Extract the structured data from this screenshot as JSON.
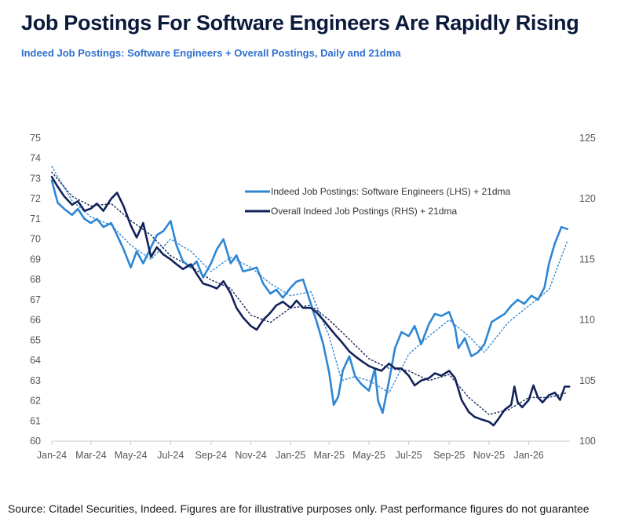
{
  "title": "Job Postings For Software Engineers Are Rapidly Rising",
  "subtitle": "Indeed Job Postings: Software Engineers + Overall Postings, Daily and 21dma",
  "source": "Source: Citadel Securities, Indeed. Figures are for illustrative purposes only. Past performance figures do not guarantee",
  "chart_data": {
    "type": "line",
    "x_axis": {
      "type": "date",
      "range": [
        "2024-01-01",
        "2026-03-05"
      ],
      "ticks": [
        "2024-01-01",
        "2024-03-01",
        "2024-05-01",
        "2024-07-01",
        "2024-09-01",
        "2024-11-01",
        "2025-01-01",
        "2025-03-01",
        "2025-05-01",
        "2025-07-01",
        "2025-09-01",
        "2025-11-01",
        "2026-01-01"
      ],
      "tick_labels": [
        "Jan-24",
        "Mar-24",
        "May-24",
        "Jul-24",
        "Sep-24",
        "Nov-24",
        "Jan-25",
        "Mar-25",
        "May-25",
        "Jul-25",
        "Sep-25",
        "Nov-25",
        "Jan-26"
      ]
    },
    "y_left": {
      "range": [
        60,
        75
      ],
      "ticks": [
        60,
        61,
        62,
        63,
        64,
        65,
        66,
        67,
        68,
        69,
        70,
        71,
        72,
        73,
        74,
        75
      ]
    },
    "y_right": {
      "range": [
        100,
        125
      ],
      "ticks": [
        100,
        105,
        110,
        115,
        120,
        125
      ]
    },
    "grid": false,
    "legend": {
      "placement": "top-right",
      "entries": [
        {
          "label": "Indeed Job Postings: Software Engineers (LHS) + 21dma",
          "color": "#2e86d4"
        },
        {
          "label": "Overall Indeed Job Postings (RHS) + 21dma",
          "color": "#13235a"
        }
      ]
    },
    "series": [
      {
        "name": "Indeed Job Postings: Software Engineers (LHS) + 21dma",
        "axis": "left",
        "color": "#2e86d4",
        "style": "solid",
        "points": [
          [
            "2024-01-01",
            72.9
          ],
          [
            "2024-01-10",
            71.8
          ],
          [
            "2024-01-20",
            71.5
          ],
          [
            "2024-02-01",
            71.2
          ],
          [
            "2024-02-10",
            71.5
          ],
          [
            "2024-02-20",
            71.0
          ],
          [
            "2024-03-01",
            70.8
          ],
          [
            "2024-03-10",
            71.0
          ],
          [
            "2024-03-20",
            70.6
          ],
          [
            "2024-04-01",
            70.8
          ],
          [
            "2024-04-10",
            70.2
          ],
          [
            "2024-04-20",
            69.5
          ],
          [
            "2024-05-01",
            68.6
          ],
          [
            "2024-05-10",
            69.4
          ],
          [
            "2024-05-20",
            68.8
          ],
          [
            "2024-06-01",
            69.6
          ],
          [
            "2024-06-10",
            70.2
          ],
          [
            "2024-06-20",
            70.4
          ],
          [
            "2024-07-01",
            70.9
          ],
          [
            "2024-07-10",
            69.7
          ],
          [
            "2024-07-20",
            68.9
          ],
          [
            "2024-08-01",
            68.6
          ],
          [
            "2024-08-10",
            68.9
          ],
          [
            "2024-08-20",
            68.1
          ],
          [
            "2024-09-01",
            68.8
          ],
          [
            "2024-09-10",
            69.5
          ],
          [
            "2024-09-20",
            70.0
          ],
          [
            "2024-10-01",
            68.8
          ],
          [
            "2024-10-10",
            69.2
          ],
          [
            "2024-10-20",
            68.4
          ],
          [
            "2024-11-01",
            68.5
          ],
          [
            "2024-11-10",
            68.6
          ],
          [
            "2024-11-20",
            67.8
          ],
          [
            "2024-12-01",
            67.3
          ],
          [
            "2024-12-10",
            67.5
          ],
          [
            "2024-12-20",
            67.1
          ],
          [
            "2025-01-01",
            67.6
          ],
          [
            "2025-01-10",
            67.9
          ],
          [
            "2025-01-20",
            68.0
          ],
          [
            "2025-02-01",
            66.8
          ],
          [
            "2025-02-10",
            65.9
          ],
          [
            "2025-02-20",
            64.8
          ],
          [
            "2025-03-01",
            63.4
          ],
          [
            "2025-03-08",
            61.8
          ],
          [
            "2025-03-15",
            62.2
          ],
          [
            "2025-03-22",
            63.5
          ],
          [
            "2025-04-01",
            64.2
          ],
          [
            "2025-04-10",
            63.2
          ],
          [
            "2025-04-20",
            62.8
          ],
          [
            "2025-05-01",
            62.5
          ],
          [
            "2025-05-10",
            63.6
          ],
          [
            "2025-05-15",
            62.0
          ],
          [
            "2025-05-22",
            61.4
          ],
          [
            "2025-06-01",
            63.0
          ],
          [
            "2025-06-10",
            64.6
          ],
          [
            "2025-06-20",
            65.4
          ],
          [
            "2025-07-01",
            65.2
          ],
          [
            "2025-07-10",
            65.7
          ],
          [
            "2025-07-20",
            64.8
          ],
          [
            "2025-08-01",
            65.8
          ],
          [
            "2025-08-10",
            66.3
          ],
          [
            "2025-08-20",
            66.2
          ],
          [
            "2025-09-01",
            66.4
          ],
          [
            "2025-09-10",
            65.6
          ],
          [
            "2025-09-15",
            64.6
          ],
          [
            "2025-09-25",
            65.1
          ],
          [
            "2025-10-05",
            64.2
          ],
          [
            "2025-10-15",
            64.4
          ],
          [
            "2025-10-25",
            64.8
          ],
          [
            "2025-11-05",
            65.9
          ],
          [
            "2025-11-15",
            66.1
          ],
          [
            "2025-11-25",
            66.3
          ],
          [
            "2025-12-05",
            66.7
          ],
          [
            "2025-12-15",
            67.0
          ],
          [
            "2025-12-25",
            66.8
          ],
          [
            "2026-01-05",
            67.2
          ],
          [
            "2026-01-15",
            67.0
          ],
          [
            "2026-01-25",
            67.6
          ],
          [
            "2026-02-01",
            68.8
          ],
          [
            "2026-02-10",
            69.8
          ],
          [
            "2026-02-20",
            70.6
          ],
          [
            "2026-03-01",
            70.5
          ]
        ]
      },
      {
        "name": "Overall Indeed Job Postings (RHS) + 21dma",
        "axis": "right",
        "color": "#13235a",
        "style": "solid",
        "points": [
          [
            "2024-01-01",
            121.8
          ],
          [
            "2024-01-10",
            121.0
          ],
          [
            "2024-01-20",
            120.2
          ],
          [
            "2024-02-01",
            119.5
          ],
          [
            "2024-02-10",
            119.8
          ],
          [
            "2024-02-20",
            119.0
          ],
          [
            "2024-03-01",
            119.2
          ],
          [
            "2024-03-10",
            119.6
          ],
          [
            "2024-03-20",
            119.0
          ],
          [
            "2024-04-01",
            120.0
          ],
          [
            "2024-04-10",
            120.5
          ],
          [
            "2024-04-20",
            119.4
          ],
          [
            "2024-05-01",
            117.8
          ],
          [
            "2024-05-10",
            116.8
          ],
          [
            "2024-05-20",
            118.0
          ],
          [
            "2024-06-01",
            115.2
          ],
          [
            "2024-06-10",
            116.0
          ],
          [
            "2024-06-20",
            115.4
          ],
          [
            "2024-07-01",
            115.0
          ],
          [
            "2024-07-10",
            114.6
          ],
          [
            "2024-07-20",
            114.2
          ],
          [
            "2024-08-01",
            114.6
          ],
          [
            "2024-08-10",
            113.8
          ],
          [
            "2024-08-20",
            113.0
          ],
          [
            "2024-09-01",
            112.8
          ],
          [
            "2024-09-10",
            112.6
          ],
          [
            "2024-09-20",
            113.2
          ],
          [
            "2024-10-01",
            112.2
          ],
          [
            "2024-10-10",
            111.0
          ],
          [
            "2024-10-20",
            110.2
          ],
          [
            "2024-11-01",
            109.5
          ],
          [
            "2024-11-10",
            109.2
          ],
          [
            "2024-11-20",
            110.0
          ],
          [
            "2024-12-01",
            110.6
          ],
          [
            "2024-12-10",
            111.2
          ],
          [
            "2024-12-20",
            111.5
          ],
          [
            "2025-01-01",
            111.0
          ],
          [
            "2025-01-10",
            111.6
          ],
          [
            "2025-01-20",
            111.0
          ],
          [
            "2025-02-01",
            111.0
          ],
          [
            "2025-02-10",
            110.6
          ],
          [
            "2025-02-20",
            110.0
          ],
          [
            "2025-03-01",
            109.4
          ],
          [
            "2025-03-10",
            108.8
          ],
          [
            "2025-03-20",
            108.2
          ],
          [
            "2025-04-01",
            107.4
          ],
          [
            "2025-04-10",
            107.0
          ],
          [
            "2025-04-20",
            106.6
          ],
          [
            "2025-05-01",
            106.2
          ],
          [
            "2025-05-10",
            106.0
          ],
          [
            "2025-05-20",
            105.8
          ],
          [
            "2025-06-01",
            106.4
          ],
          [
            "2025-06-10",
            106.0
          ],
          [
            "2025-06-20",
            106.0
          ],
          [
            "2025-07-01",
            105.4
          ],
          [
            "2025-07-10",
            104.6
          ],
          [
            "2025-07-20",
            105.0
          ],
          [
            "2025-08-01",
            105.2
          ],
          [
            "2025-08-10",
            105.6
          ],
          [
            "2025-08-20",
            105.4
          ],
          [
            "2025-09-01",
            105.8
          ],
          [
            "2025-09-10",
            105.2
          ],
          [
            "2025-09-20",
            103.4
          ],
          [
            "2025-10-01",
            102.4
          ],
          [
            "2025-10-10",
            102.0
          ],
          [
            "2025-10-20",
            101.8
          ],
          [
            "2025-11-01",
            101.6
          ],
          [
            "2025-11-08",
            101.3
          ],
          [
            "2025-11-15",
            101.8
          ],
          [
            "2025-11-25",
            102.6
          ],
          [
            "2025-12-05",
            103.0
          ],
          [
            "2025-12-10",
            104.5
          ],
          [
            "2025-12-15",
            103.2
          ],
          [
            "2025-12-22",
            102.8
          ],
          [
            "2026-01-01",
            103.4
          ],
          [
            "2026-01-08",
            104.6
          ],
          [
            "2026-01-15",
            103.6
          ],
          [
            "2026-01-22",
            103.2
          ],
          [
            "2026-02-01",
            103.8
          ],
          [
            "2026-02-10",
            104.0
          ],
          [
            "2026-02-18",
            103.4
          ],
          [
            "2026-02-25",
            104.5
          ],
          [
            "2026-03-04",
            104.5
          ]
        ]
      },
      {
        "name": "",
        "axis": "left",
        "color": "#2e86d4",
        "style": "dotted",
        "points": [
          [
            "2024-01-01",
            73.6
          ],
          [
            "2024-02-01",
            71.9
          ],
          [
            "2024-03-01",
            71.1
          ],
          [
            "2024-04-01",
            70.7
          ],
          [
            "2024-05-01",
            69.7
          ],
          [
            "2024-06-01",
            69.0
          ],
          [
            "2024-07-01",
            70.0
          ],
          [
            "2024-08-01",
            69.4
          ],
          [
            "2024-09-01",
            68.4
          ],
          [
            "2024-10-01",
            69.1
          ],
          [
            "2024-11-01",
            68.6
          ],
          [
            "2024-12-01",
            67.8
          ],
          [
            "2025-01-01",
            67.2
          ],
          [
            "2025-02-01",
            67.4
          ],
          [
            "2025-03-01",
            65.2
          ],
          [
            "2025-03-20",
            63.0
          ],
          [
            "2025-04-10",
            63.2
          ],
          [
            "2025-05-01",
            63.0
          ],
          [
            "2025-06-01",
            62.4
          ],
          [
            "2025-07-01",
            64.3
          ],
          [
            "2025-08-01",
            65.2
          ],
          [
            "2025-09-01",
            66.0
          ],
          [
            "2025-10-01",
            65.2
          ],
          [
            "2025-10-25",
            64.4
          ],
          [
            "2025-12-01",
            65.9
          ],
          [
            "2026-01-01",
            66.7
          ],
          [
            "2026-02-01",
            67.5
          ],
          [
            "2026-03-01",
            69.9
          ]
        ]
      },
      {
        "name": "",
        "axis": "right",
        "color": "#13235a",
        "style": "dotted",
        "points": [
          [
            "2024-01-01",
            122.2
          ],
          [
            "2024-02-01",
            120.2
          ],
          [
            "2024-03-01",
            119.4
          ],
          [
            "2024-04-01",
            119.6
          ],
          [
            "2024-05-01",
            118.2
          ],
          [
            "2024-06-01",
            117.0
          ],
          [
            "2024-07-01",
            115.3
          ],
          [
            "2024-08-01",
            114.4
          ],
          [
            "2024-09-01",
            113.3
          ],
          [
            "2024-10-01",
            112.6
          ],
          [
            "2024-11-01",
            110.4
          ],
          [
            "2024-12-01",
            109.8
          ],
          [
            "2025-01-01",
            111.0
          ],
          [
            "2025-02-01",
            111.2
          ],
          [
            "2025-03-01",
            110.0
          ],
          [
            "2025-04-01",
            108.4
          ],
          [
            "2025-05-01",
            106.8
          ],
          [
            "2025-06-01",
            106.0
          ],
          [
            "2025-07-01",
            105.8
          ],
          [
            "2025-08-01",
            105.0
          ],
          [
            "2025-09-01",
            105.5
          ],
          [
            "2025-10-01",
            103.6
          ],
          [
            "2025-11-01",
            102.2
          ],
          [
            "2025-12-01",
            102.6
          ],
          [
            "2026-01-01",
            103.6
          ],
          [
            "2026-02-01",
            103.6
          ],
          [
            "2026-03-01",
            104.0
          ]
        ]
      }
    ]
  }
}
